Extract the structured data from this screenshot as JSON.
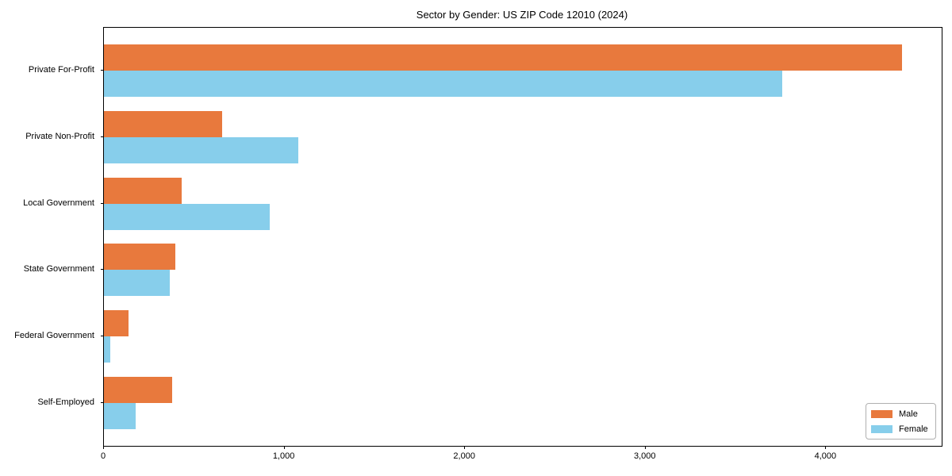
{
  "chart_data": {
    "type": "bar",
    "orientation": "horizontal",
    "title": "Sector by Gender: US ZIP Code 12010 (2024)",
    "categories": [
      "Private For-Profit",
      "Private Non-Profit",
      "Local Government",
      "State Government",
      "Federal Government",
      "Self-Employed"
    ],
    "series": [
      {
        "name": "Male",
        "color": "#E8793D",
        "values": [
          4420,
          655,
          430,
          395,
          135,
          380
        ]
      },
      {
        "name": "Female",
        "color": "#87CEEB",
        "values": [
          3755,
          1075,
          920,
          365,
          37,
          175
        ]
      }
    ],
    "xlabel": "",
    "ylabel": "",
    "xlim": [
      0,
      4640
    ],
    "xticks": [
      0,
      1000,
      2000,
      3000,
      4000
    ],
    "xtick_labels": [
      "0",
      "1,000",
      "2,000",
      "3,000",
      "4,000"
    ],
    "grid": false,
    "legend_position": "lower right",
    "axis_color": "#000000",
    "background_color": "#ffffff"
  }
}
